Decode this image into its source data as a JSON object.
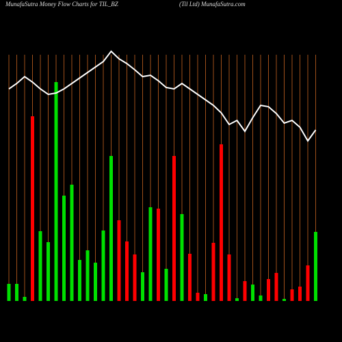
{
  "chart_data": {
    "type": "bar",
    "title": "MunafaSutra  Money Flow  Charts for TIL_BZ",
    "subtitle": "(Til Ltd) MunafaSutra.com",
    "categories": [
      null,
      null,
      null,
      null,
      null,
      null,
      null,
      null,
      null,
      null,
      null,
      null,
      null,
      null,
      null,
      null,
      null,
      null,
      null,
      null,
      null,
      null,
      null,
      null,
      null,
      null,
      null,
      null,
      null,
      null,
      null,
      null,
      null,
      null,
      null,
      null,
      null,
      null,
      null,
      null
    ],
    "series": [
      {
        "type": "bar",
        "values": [
          25,
          25,
          6,
          270,
          102,
          86,
          320,
          154,
          170,
          60,
          74,
          56,
          103,
          212,
          118,
          87,
          68,
          42,
          137,
          135,
          47,
          212,
          127,
          69,
          12,
          10,
          85,
          229,
          68,
          4,
          29,
          24,
          8,
          32,
          41,
          3,
          17,
          21,
          52,
          101
        ],
        "colors": [
          "#00e000",
          "#00e000",
          "#00e000",
          "#ff0000",
          "#00e000",
          "#00e000",
          "#00e000",
          "#00e000",
          "#00e000",
          "#00e000",
          "#00e000",
          "#00e000",
          "#00e000",
          "#00e000",
          "#ff0000",
          "#ff0000",
          "#ff0000",
          "#00e000",
          "#00e000",
          "#ff0000",
          "#00e000",
          "#ff0000",
          "#00e000",
          "#ff0000",
          "#ff0000",
          "#00e000",
          "#ff0000",
          "#ff0000",
          "#ff0000",
          "#00e000",
          "#ff0000",
          "#00e000",
          "#00e000",
          "#ff0000",
          "#ff0000",
          "#00e000",
          "#ff0000",
          "#ff0000",
          "#ff0000",
          "#00e000"
        ]
      },
      {
        "type": "line",
        "axis": "y2",
        "color": "#ffffff",
        "values": [
          310,
          318,
          328,
          320,
          310,
          302,
          304,
          310,
          318,
          326,
          334,
          342,
          350,
          365,
          354,
          347,
          338,
          328,
          330,
          322,
          312,
          310,
          318,
          310,
          302,
          294,
          286,
          275,
          258,
          264,
          248,
          268,
          286,
          284,
          274,
          260,
          264,
          254,
          234,
          250
        ]
      }
    ],
    "ylim": [
      0,
      360
    ],
    "y2lim": [
      0,
      360
    ],
    "grid_color": "#a0501a"
  }
}
